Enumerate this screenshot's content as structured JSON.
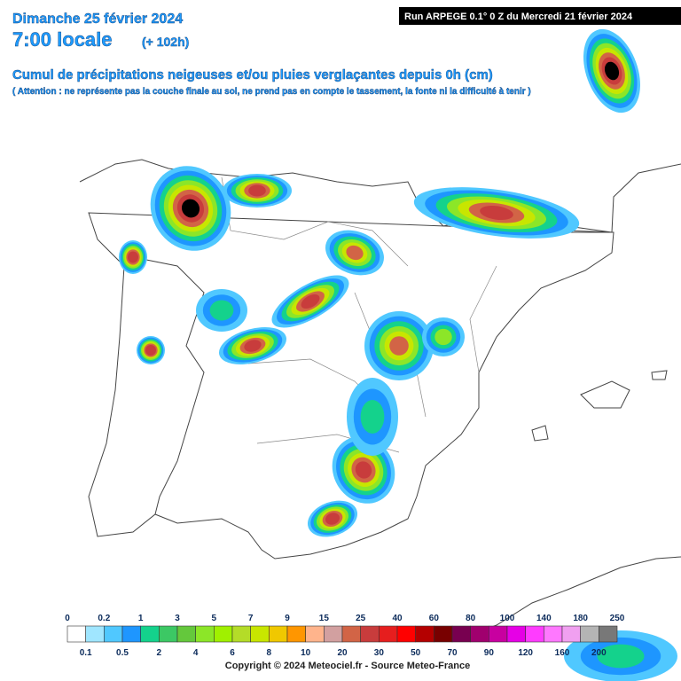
{
  "header": {
    "date": "Dimanche 25 février 2024",
    "time": "7:00 locale",
    "offset": "(+ 102h)",
    "run": "Run ARPEGE 0.1° 0 Z du Mercredi 21 février 2024",
    "title": "Cumul de précipitations neigeuses et/ou pluies verglaçantes depuis 0h (cm)",
    "note": "( Attention : ne représente pas la couche finale au sol, ne prend pas en compte le tassement, la fonte ni la difficulté à tenir )"
  },
  "legend": {
    "thresholds": [
      0,
      0.1,
      0.2,
      0.5,
      1,
      2,
      3,
      4,
      5,
      6,
      7,
      8,
      9,
      10,
      15,
      20,
      25,
      30,
      40,
      50,
      60,
      70,
      80,
      90,
      100,
      120,
      140,
      160,
      180,
      200,
      250
    ],
    "colors": [
      "#ffffff",
      "#a0e6ff",
      "#50c8ff",
      "#1e96ff",
      "#14d28c",
      "#3cc864",
      "#64c83c",
      "#8ce628",
      "#a0f000",
      "#b4dc28",
      "#c8e600",
      "#f0c800",
      "#ff9600",
      "#ffb48c",
      "#d2a0a0",
      "#d26446",
      "#c83c3c",
      "#e61e1e",
      "#ff0000",
      "#b40000",
      "#780000",
      "#780050",
      "#a0006e",
      "#c800a0",
      "#e600e6",
      "#ff3cff",
      "#ff78ff",
      "#f0a0f0",
      "#b4b4b4",
      "#787878"
    ]
  },
  "footer": {
    "copyright": "Copyright © 2024 Meteociel.fr - Source Meteo-France"
  }
}
